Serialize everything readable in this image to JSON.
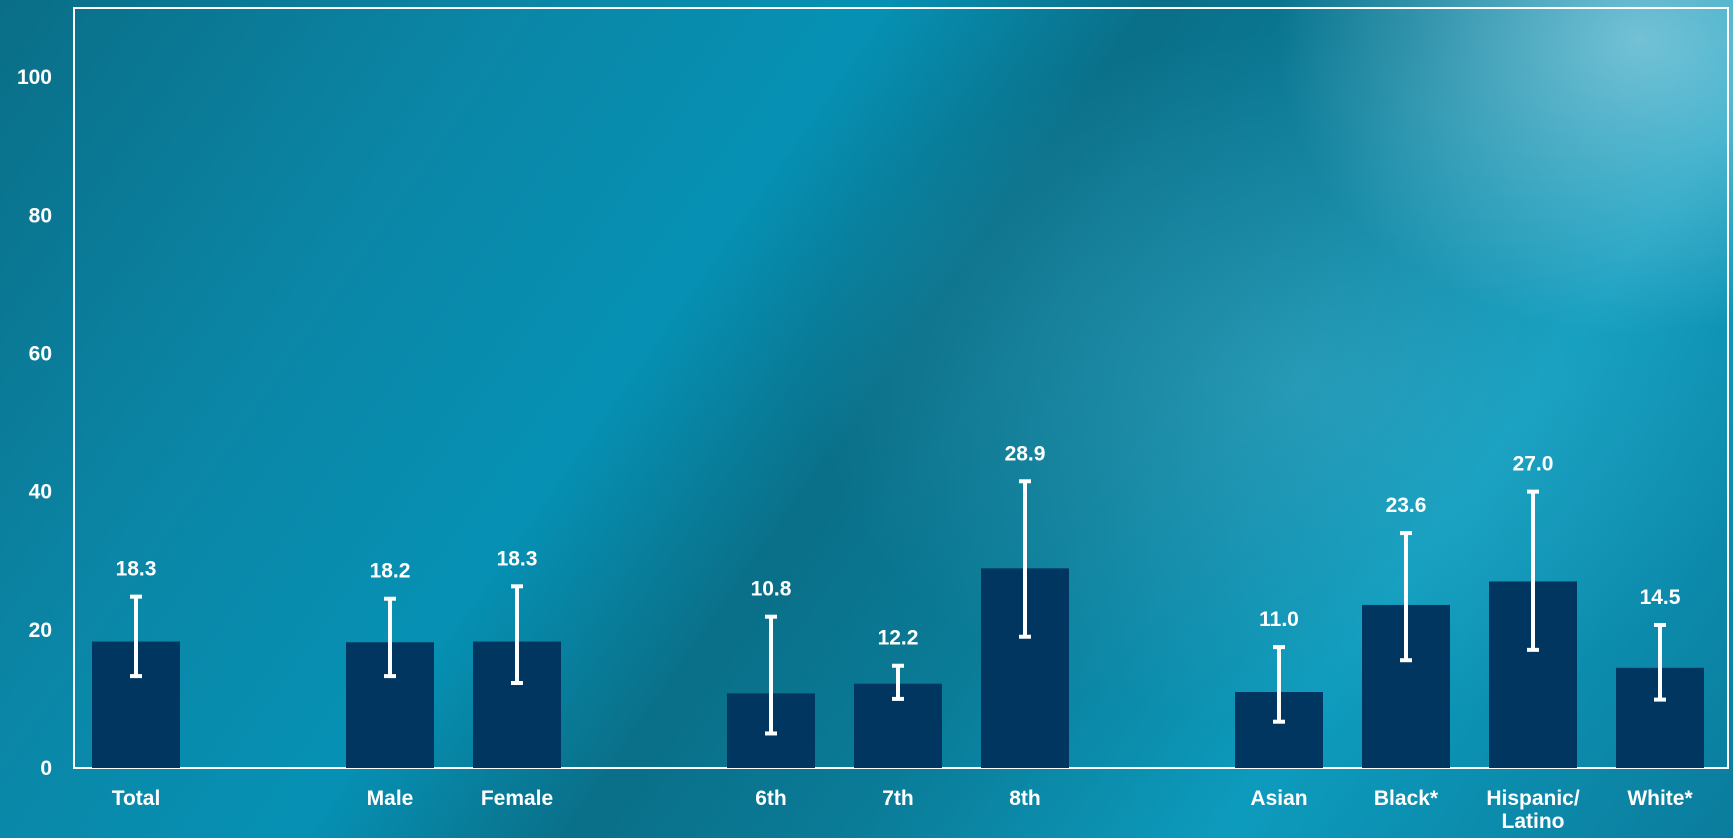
{
  "chart_data": {
    "type": "bar",
    "title": "",
    "xlabel": "",
    "ylabel": "",
    "ylim": [
      0,
      110
    ],
    "yticks": [
      0,
      20,
      40,
      60,
      80,
      100
    ],
    "grid": false,
    "categories": [
      [
        "Total"
      ],
      [
        "Male"
      ],
      [
        "Female"
      ],
      [
        "6th"
      ],
      [
        "7th"
      ],
      [
        "8th"
      ],
      [
        "Asian"
      ],
      [
        "Black*"
      ],
      [
        "Hispanic/",
        "Latino"
      ],
      [
        "White*"
      ]
    ],
    "groups": [
      0,
      1,
      1,
      2,
      2,
      2,
      3,
      3,
      3,
      3
    ],
    "series": [
      {
        "values": [
          18.3,
          18.2,
          18.3,
          10.8,
          12.2,
          28.9,
          11.0,
          23.6,
          27.0,
          14.5
        ],
        "value_labels": [
          "18.3",
          "18.2",
          "18.3",
          "10.8",
          "12.2",
          "28.9",
          "11.0",
          "23.6",
          "27.0",
          "14.5"
        ],
        "ci_lower": [
          13.3,
          13.3,
          12.3,
          5.0,
          10.0,
          19.0,
          6.7,
          15.6,
          17.1,
          9.9
        ],
        "ci_upper": [
          24.8,
          24.5,
          26.3,
          21.9,
          14.8,
          41.5,
          17.5,
          34.0,
          40.0,
          20.7
        ]
      }
    ]
  },
  "colors": {
    "bar": "#003660",
    "axis": "#ffffff",
    "text": "#ffffff",
    "error_bar": "#ffffff"
  }
}
